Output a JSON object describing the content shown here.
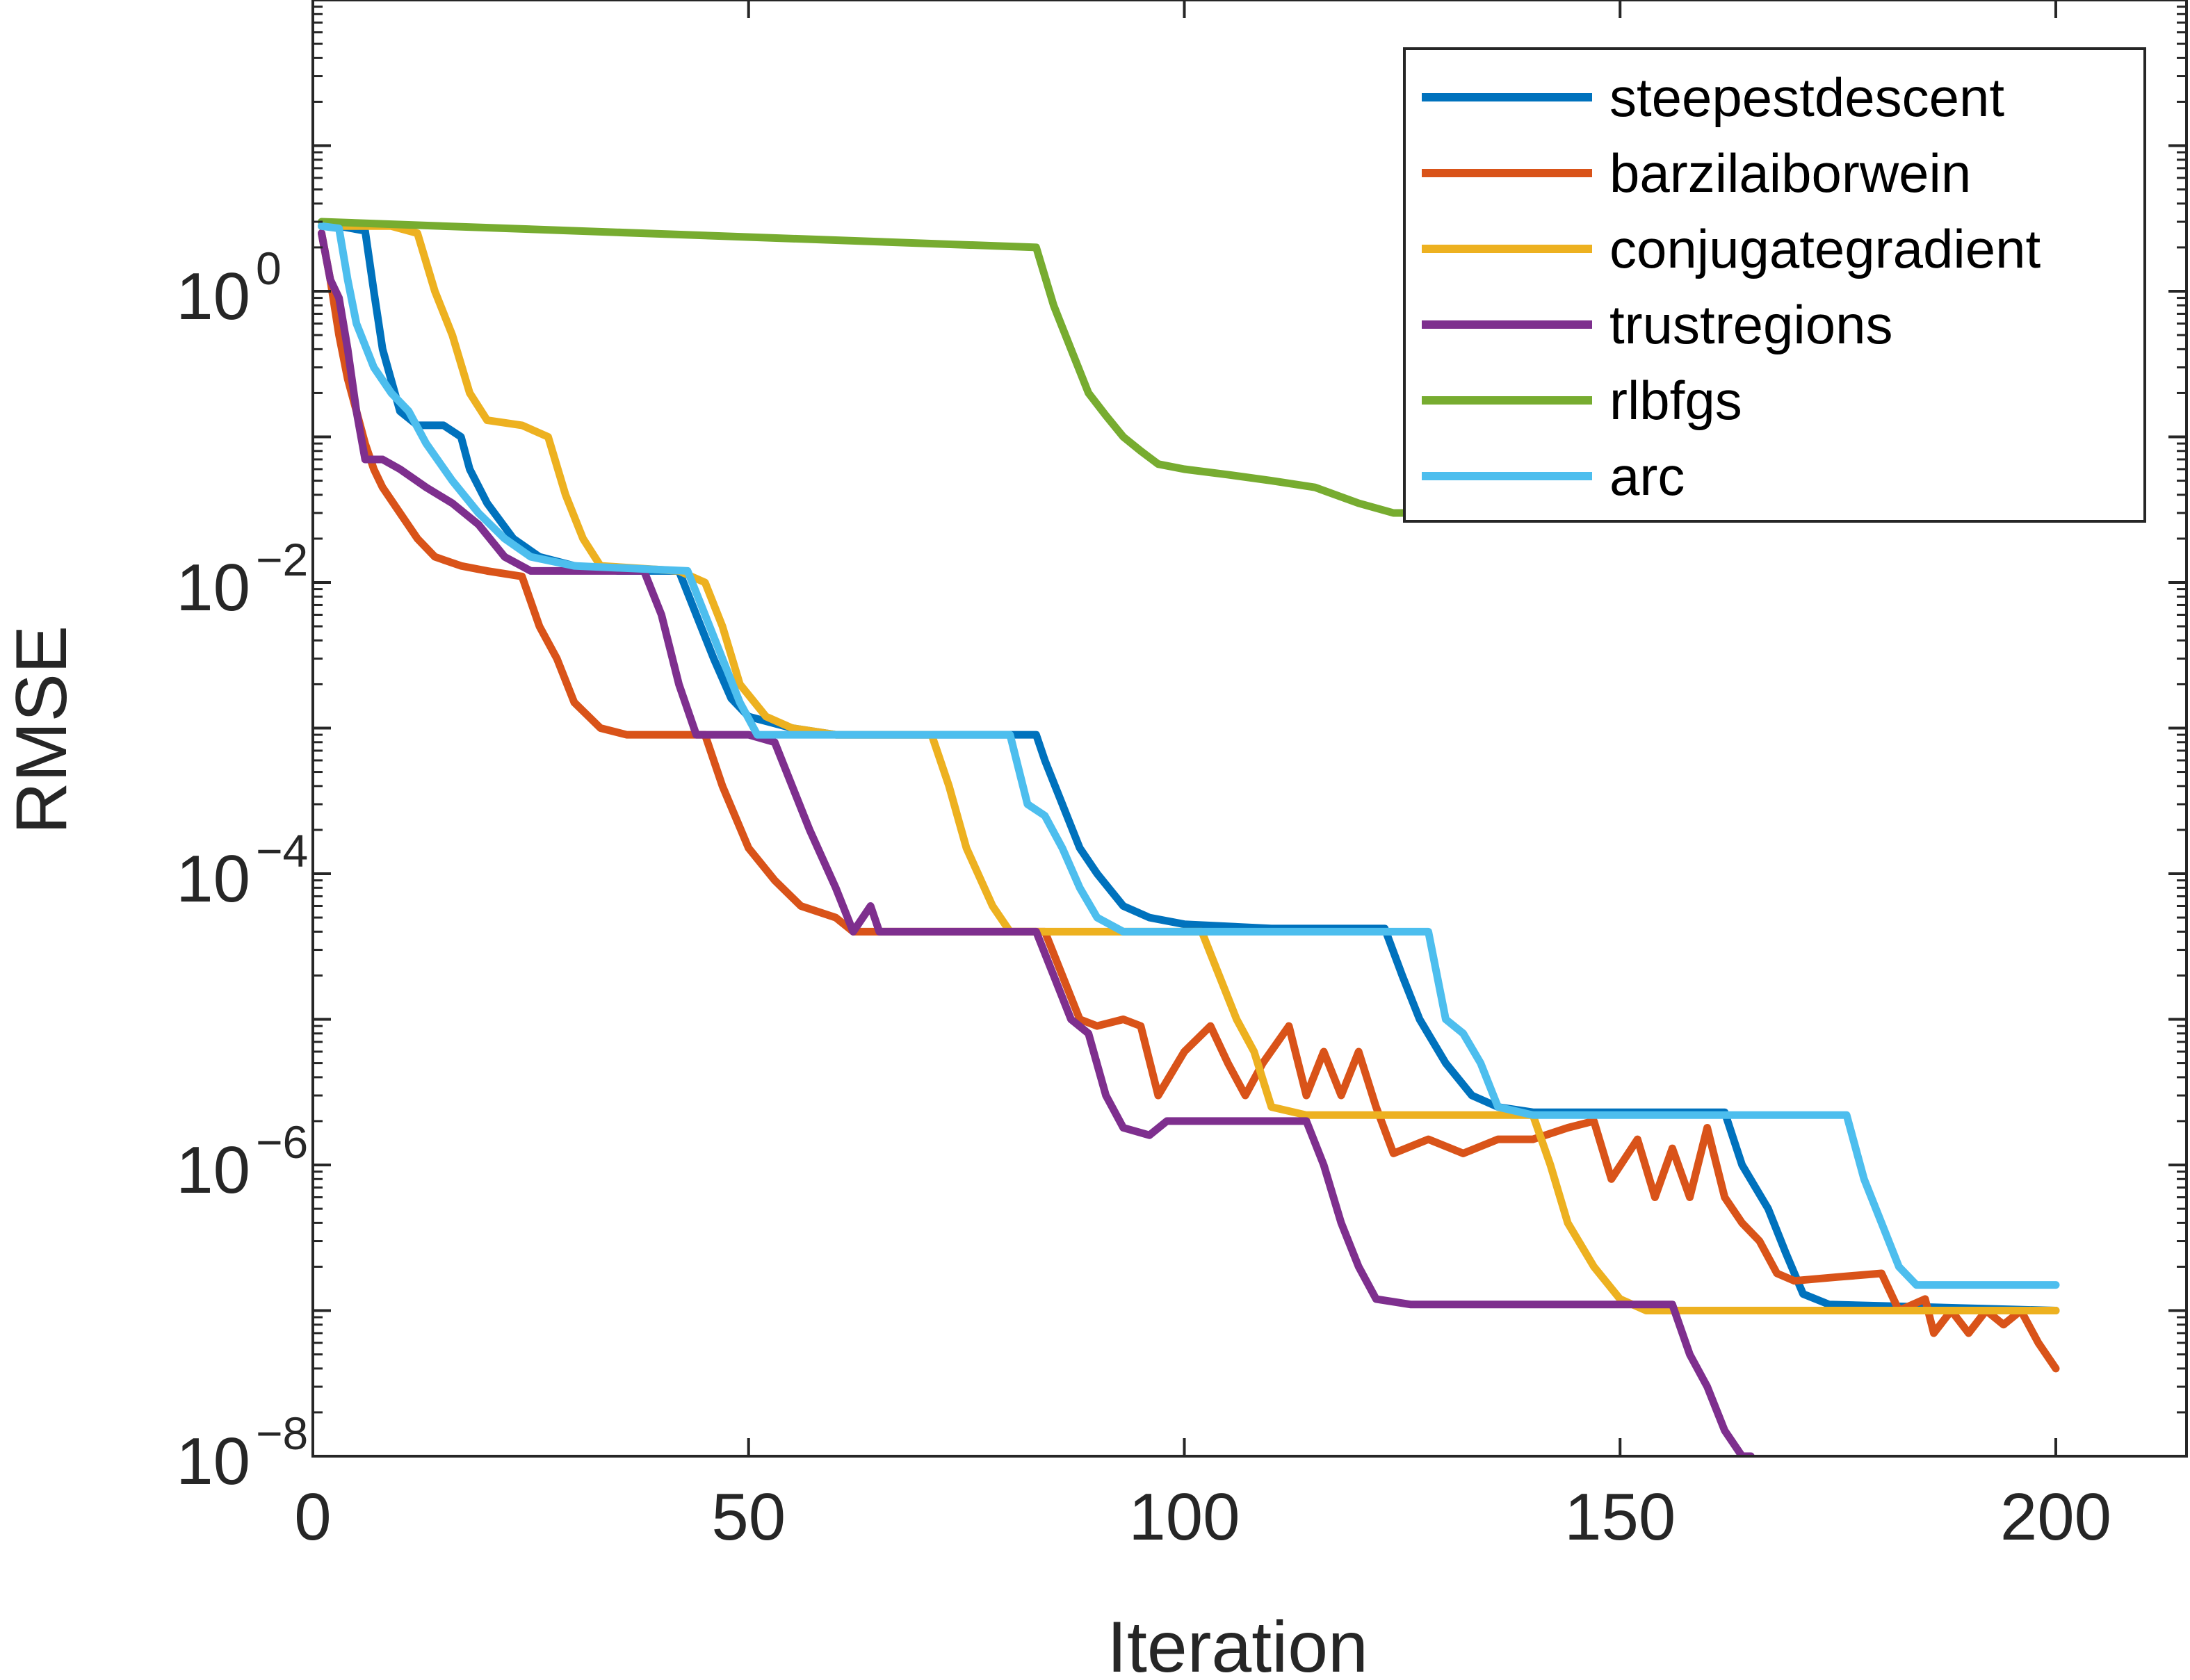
{
  "chart_data": {
    "type": "line",
    "xlabel": "Iteration",
    "ylabel": "RMSE",
    "xlim": [
      0,
      215
    ],
    "ylim": [
      1e-08,
      100
    ],
    "yscale": "log",
    "xticks": [
      0,
      50,
      100,
      150,
      200
    ],
    "xtick_labels": [
      "0",
      "50",
      "100",
      "150",
      "200"
    ],
    "yticks": [
      1,
      0.01,
      0.0001,
      1e-06,
      1e-08
    ],
    "ytick_bases": [
      "10",
      "10",
      "10",
      "10",
      "10"
    ],
    "ytick_exps": [
      "0",
      "−2",
      "−4",
      "−6",
      "−8"
    ],
    "grid": false,
    "legend_position": "top-right",
    "series": [
      {
        "name": "steepestdescent",
        "color": "#0072BD",
        "points": [
          [
            1,
            2.8
          ],
          [
            3,
            2.8
          ],
          [
            6,
            2.6
          ],
          [
            7,
            1.0
          ],
          [
            8,
            0.4
          ],
          [
            10,
            0.15
          ],
          [
            12,
            0.12
          ],
          [
            15,
            0.12
          ],
          [
            17,
            0.1
          ],
          [
            18,
            0.06
          ],
          [
            20,
            0.035
          ],
          [
            23,
            0.02
          ],
          [
            26,
            0.015
          ],
          [
            30,
            0.013
          ],
          [
            35,
            0.012
          ],
          [
            42,
            0.012
          ],
          [
            44,
            0.006
          ],
          [
            46,
            0.003
          ],
          [
            48,
            0.0016
          ],
          [
            50,
            0.0012
          ],
          [
            55,
            0.001
          ],
          [
            60,
            0.0009
          ],
          [
            80,
            0.0009
          ],
          [
            83,
            0.0009
          ],
          [
            84,
            0.0006
          ],
          [
            86,
            0.0003
          ],
          [
            88,
            0.00015
          ],
          [
            90,
            0.0001
          ],
          [
            93,
            6e-05
          ],
          [
            96,
            5e-05
          ],
          [
            100,
            4.5e-05
          ],
          [
            110,
            4.2e-05
          ],
          [
            123,
            4.2e-05
          ],
          [
            125,
            2e-05
          ],
          [
            127,
            1e-05
          ],
          [
            130,
            5e-06
          ],
          [
            133,
            3e-06
          ],
          [
            136,
            2.5e-06
          ],
          [
            140,
            2.3e-06
          ],
          [
            162,
            2.3e-06
          ],
          [
            164,
            1e-06
          ],
          [
            167,
            5e-07
          ],
          [
            169,
            2.5e-07
          ],
          [
            171,
            1.3e-07
          ],
          [
            174,
            1.1e-07
          ],
          [
            200,
            1e-07
          ]
        ]
      },
      {
        "name": "barzilaiborwein",
        "color": "#D95319",
        "points": [
          [
            1,
            2.5
          ],
          [
            2,
            1.2
          ],
          [
            3,
            0.5
          ],
          [
            4,
            0.25
          ],
          [
            5,
            0.15
          ],
          [
            6,
            0.09
          ],
          [
            7,
            0.06
          ],
          [
            8,
            0.045
          ],
          [
            10,
            0.03
          ],
          [
            12,
            0.02
          ],
          [
            14,
            0.015
          ],
          [
            17,
            0.013
          ],
          [
            20,
            0.012
          ],
          [
            24,
            0.011
          ],
          [
            26,
            0.005
          ],
          [
            28,
            0.003
          ],
          [
            30,
            0.0015
          ],
          [
            33,
            0.001
          ],
          [
            36,
            0.0009
          ],
          [
            45,
            0.0009
          ],
          [
            47,
            0.0004
          ],
          [
            50,
            0.00015
          ],
          [
            53,
            9e-05
          ],
          [
            56,
            6e-05
          ],
          [
            60,
            5e-05
          ],
          [
            62,
            4e-05
          ],
          [
            65,
            4e-05
          ],
          [
            70,
            4e-05
          ],
          [
            84,
            4e-05
          ],
          [
            86,
            2e-05
          ],
          [
            88,
            1e-05
          ],
          [
            90,
            9e-06
          ],
          [
            93,
            1e-05
          ],
          [
            95,
            9e-06
          ],
          [
            97,
            3e-06
          ],
          [
            100,
            6e-06
          ],
          [
            103,
            9e-06
          ],
          [
            105,
            5e-06
          ],
          [
            107,
            3e-06
          ],
          [
            109,
            5e-06
          ],
          [
            112,
            9e-06
          ],
          [
            114,
            3e-06
          ],
          [
            116,
            6e-06
          ],
          [
            118,
            3e-06
          ],
          [
            120,
            6e-06
          ],
          [
            122,
            2.5e-06
          ],
          [
            124,
            1.2e-06
          ],
          [
            128,
            1.5e-06
          ],
          [
            132,
            1.2e-06
          ],
          [
            136,
            1.5e-06
          ],
          [
            140,
            1.5e-06
          ],
          [
            144,
            1.8e-06
          ],
          [
            147,
            2e-06
          ],
          [
            149,
            8e-07
          ],
          [
            152,
            1.5e-06
          ],
          [
            154,
            6e-07
          ],
          [
            156,
            1.3e-06
          ],
          [
            158,
            6e-07
          ],
          [
            160,
            1.8e-06
          ],
          [
            162,
            6e-07
          ],
          [
            164,
            4e-07
          ],
          [
            166,
            3e-07
          ],
          [
            168,
            1.8e-07
          ],
          [
            170,
            1.6e-07
          ],
          [
            175,
            1.7e-07
          ],
          [
            180,
            1.8e-07
          ],
          [
            182,
            1e-07
          ],
          [
            185,
            1.2e-07
          ],
          [
            186,
            7e-08
          ],
          [
            188,
            1e-07
          ],
          [
            190,
            7e-08
          ],
          [
            192,
            1e-07
          ],
          [
            194,
            8e-08
          ],
          [
            196,
            1e-07
          ],
          [
            198,
            6e-08
          ],
          [
            200,
            4e-08
          ]
        ]
      },
      {
        "name": "conjugategradient",
        "color": "#EDB120",
        "points": [
          [
            1,
            2.8
          ],
          [
            9,
            2.8
          ],
          [
            12,
            2.5
          ],
          [
            14,
            1.0
          ],
          [
            16,
            0.5
          ],
          [
            18,
            0.2
          ],
          [
            20,
            0.13
          ],
          [
            24,
            0.12
          ],
          [
            27,
            0.1
          ],
          [
            29,
            0.04
          ],
          [
            31,
            0.02
          ],
          [
            33,
            0.013
          ],
          [
            42,
            0.012
          ],
          [
            45,
            0.01
          ],
          [
            47,
            0.005
          ],
          [
            49,
            0.002
          ],
          [
            52,
            0.0012
          ],
          [
            55,
            0.001
          ],
          [
            60,
            0.0009
          ],
          [
            71,
            0.0009
          ],
          [
            73,
            0.0004
          ],
          [
            75,
            0.00015
          ],
          [
            78,
            6e-05
          ],
          [
            80,
            4e-05
          ],
          [
            102,
            4e-05
          ],
          [
            104,
            2e-05
          ],
          [
            106,
            1e-05
          ],
          [
            108,
            6e-06
          ],
          [
            110,
            2.5e-06
          ],
          [
            114,
            2.2e-06
          ],
          [
            140,
            2.2e-06
          ],
          [
            142,
            1e-06
          ],
          [
            144,
            4e-07
          ],
          [
            147,
            2e-07
          ],
          [
            150,
            1.2e-07
          ],
          [
            153,
            1e-07
          ],
          [
            200,
            1e-07
          ]
        ]
      },
      {
        "name": "trustregions",
        "color": "#7E2F8E",
        "points": [
          [
            1,
            2.5
          ],
          [
            2,
            1.2
          ],
          [
            3,
            0.9
          ],
          [
            4,
            0.4
          ],
          [
            5,
            0.15
          ],
          [
            6,
            0.07
          ],
          [
            8,
            0.07
          ],
          [
            10,
            0.06
          ],
          [
            13,
            0.045
          ],
          [
            16,
            0.035
          ],
          [
            19,
            0.025
          ],
          [
            22,
            0.015
          ],
          [
            25,
            0.012
          ],
          [
            38,
            0.012
          ],
          [
            40,
            0.006
          ],
          [
            42,
            0.002
          ],
          [
            44,
            0.0009
          ],
          [
            50,
            0.0009
          ],
          [
            53,
            0.0008
          ],
          [
            55,
            0.0004
          ],
          [
            57,
            0.0002
          ],
          [
            60,
            8e-05
          ],
          [
            62,
            4e-05
          ],
          [
            64,
            6e-05
          ],
          [
            65,
            4e-05
          ],
          [
            83,
            4e-05
          ],
          [
            85,
            2e-05
          ],
          [
            87,
            1e-05
          ],
          [
            89,
            8e-06
          ],
          [
            91,
            3e-06
          ],
          [
            93,
            1.8e-06
          ],
          [
            96,
            1.6e-06
          ],
          [
            98,
            2e-06
          ],
          [
            114,
            2e-06
          ],
          [
            116,
            1e-06
          ],
          [
            118,
            4e-07
          ],
          [
            120,
            2e-07
          ],
          [
            122,
            1.2e-07
          ],
          [
            126,
            1.1e-07
          ],
          [
            156,
            1.1e-07
          ],
          [
            158,
            5e-08
          ],
          [
            160,
            3e-08
          ],
          [
            162,
            1.5e-08
          ],
          [
            164,
            1e-08
          ],
          [
            165,
            8e-09
          ]
        ]
      },
      {
        "name": "rlbfgs",
        "color": "#77AC30",
        "points": [
          [
            1,
            3.0
          ],
          [
            83,
            2.0
          ],
          [
            85,
            0.8
          ],
          [
            87,
            0.4
          ],
          [
            89,
            0.2
          ],
          [
            91,
            0.14
          ],
          [
            93,
            0.1
          ],
          [
            95,
            0.08
          ],
          [
            97,
            0.065
          ],
          [
            100,
            0.06
          ],
          [
            105,
            0.055
          ],
          [
            110,
            0.05
          ],
          [
            115,
            0.045
          ],
          [
            120,
            0.035
          ],
          [
            124,
            0.03
          ],
          [
            126,
            0.03
          ]
        ]
      },
      {
        "name": "arc",
        "color": "#4DBEEE",
        "points": [
          [
            1,
            2.8
          ],
          [
            3,
            2.7
          ],
          [
            4,
            1.2
          ],
          [
            5,
            0.6
          ],
          [
            7,
            0.3
          ],
          [
            9,
            0.2
          ],
          [
            11,
            0.15
          ],
          [
            13,
            0.09
          ],
          [
            16,
            0.05
          ],
          [
            19,
            0.03
          ],
          [
            22,
            0.02
          ],
          [
            25,
            0.015
          ],
          [
            30,
            0.013
          ],
          [
            43,
            0.012
          ],
          [
            45,
            0.006
          ],
          [
            47,
            0.003
          ],
          [
            49,
            0.0015
          ],
          [
            51,
            0.0009
          ],
          [
            80,
            0.0009
          ],
          [
            82,
            0.0003
          ],
          [
            84,
            0.00025
          ],
          [
            86,
            0.00015
          ],
          [
            88,
            8e-05
          ],
          [
            90,
            5e-05
          ],
          [
            93,
            4e-05
          ],
          [
            128,
            4e-05
          ],
          [
            130,
            1e-05
          ],
          [
            132,
            8e-06
          ],
          [
            134,
            5e-06
          ],
          [
            136,
            2.5e-06
          ],
          [
            140,
            2.2e-06
          ],
          [
            176,
            2.2e-06
          ],
          [
            178,
            8e-07
          ],
          [
            180,
            4e-07
          ],
          [
            182,
            2e-07
          ],
          [
            184,
            1.5e-07
          ],
          [
            200,
            1.5e-07
          ]
        ]
      }
    ]
  }
}
